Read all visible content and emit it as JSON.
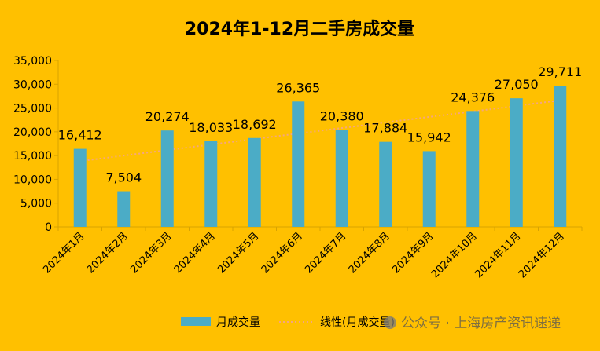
{
  "chart_data": {
    "type": "bar",
    "title": "2024年1-12月二手房成交量",
    "categories": [
      "2024年1月",
      "2024年2月",
      "2024年3月",
      "2024年4月",
      "2024年5月",
      "2024年6月",
      "2024年7月",
      "2024年8月",
      "2024年9月",
      "2024年10月",
      "2024年11月",
      "2024年12月"
    ],
    "series": [
      {
        "name": "月成交量",
        "values": [
          16412,
          7504,
          20274,
          18033,
          18692,
          26365,
          20380,
          17884,
          15942,
          24376,
          27050,
          29711
        ],
        "data_labels": [
          "16,412",
          "7,504",
          "20,274",
          "18,033",
          "18,692",
          "26,365",
          "20,380",
          "17,884",
          "15,942",
          "24,376",
          "27,050",
          "29,711"
        ],
        "color": "#4BACC6"
      }
    ],
    "trendline": {
      "name": "线性(月成交量)",
      "type": "linear",
      "color": "#F4A582",
      "style": "dotted"
    },
    "ylim": [
      0,
      35000
    ],
    "yticks": [
      0,
      5000,
      10000,
      15000,
      20000,
      25000,
      30000,
      35000
    ],
    "ytick_labels": [
      "0",
      "5,000",
      "10,000",
      "15,000",
      "20,000",
      "25,000",
      "30,000",
      "35,000"
    ],
    "xlabel": "",
    "ylabel": "",
    "grid": false,
    "legend_position": "bottom",
    "background_color": "#FFC000",
    "watermark": "公众号 · 上海房产资讯速递"
  }
}
